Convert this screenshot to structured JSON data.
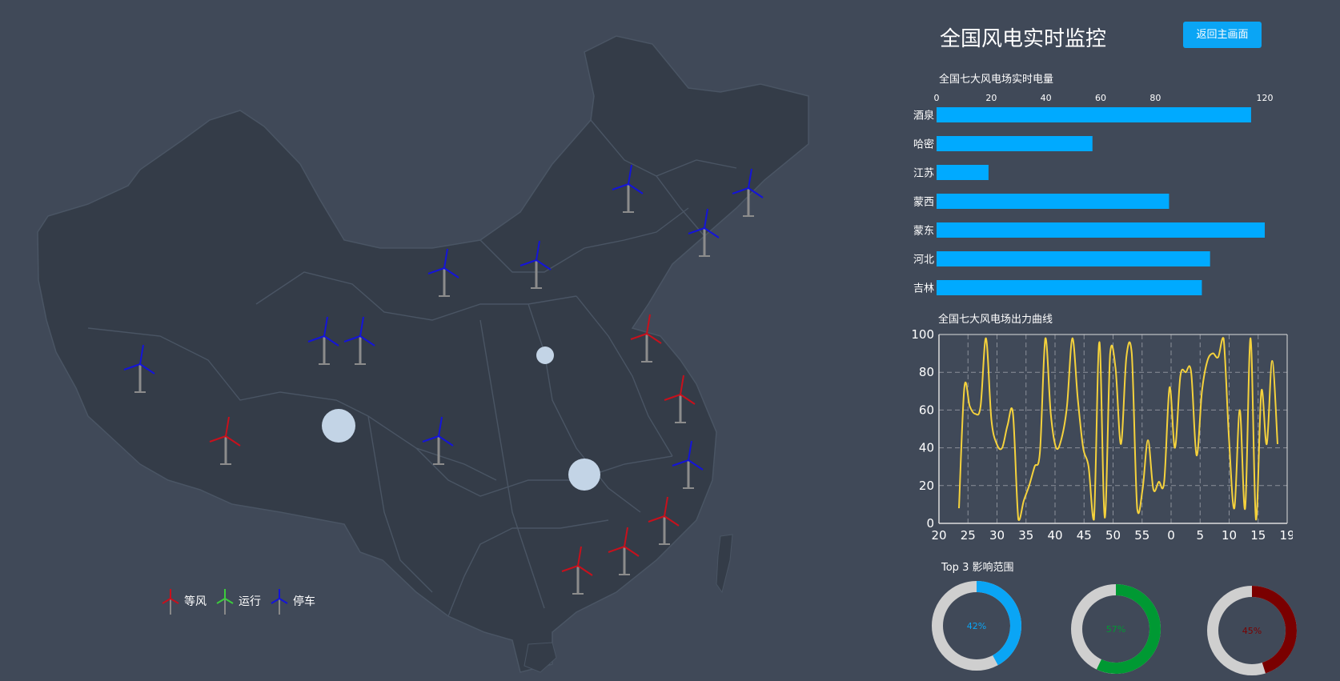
{
  "header": {
    "title": "全国风电实时监控",
    "home_button": "返回主画面"
  },
  "legend": [
    {
      "label": "等风",
      "color": "#c8101c"
    },
    {
      "label": "运行",
      "color": "#3ccc3c"
    },
    {
      "label": "停车",
      "color": "#1414d8"
    }
  ],
  "colors": {
    "bar": "#00aaff",
    "line": "#f5d23c",
    "background": "#404958",
    "land": "#343c48"
  },
  "bar_title": "全国七大风电场实时电量",
  "line_title": "全国七大风电场出力曲线",
  "donut_title": "Top 3 影响范围",
  "chart_data": [
    {
      "type": "bar",
      "orientation": "horizontal",
      "categories": [
        "酒泉",
        "哈密",
        "江苏",
        "蒙西",
        "蒙东",
        "河北",
        "吉林"
      ],
      "values": [
        115,
        57,
        19,
        85,
        120,
        100,
        97
      ],
      "xlim": [
        0,
        120
      ],
      "xticks": [
        "0",
        "20",
        "40",
        "60",
        "80",
        "120"
      ]
    },
    {
      "type": "line",
      "ylim": [
        0,
        100
      ],
      "yticks": [
        "0",
        "20",
        "40",
        "60",
        "80",
        "100"
      ],
      "xticks": [
        "20",
        "25",
        "30",
        "35",
        "40",
        "45",
        "50",
        "55",
        "0",
        "5",
        "10",
        "15",
        "19"
      ],
      "grid": true,
      "y": [
        8,
        72,
        62,
        58,
        62,
        98,
        55,
        42,
        40,
        52,
        58,
        2,
        12,
        20,
        30,
        38,
        98,
        58,
        40,
        45,
        62,
        98,
        66,
        40,
        30,
        2,
        96,
        3,
        90,
        82,
        42,
        88,
        90,
        8,
        18,
        44,
        18,
        22,
        22,
        72,
        40,
        78,
        80,
        80,
        36,
        70,
        86,
        90,
        88,
        98,
        45,
        8,
        60,
        8,
        98,
        2,
        70,
        42,
        86,
        42
      ]
    },
    {
      "type": "pie",
      "variant": "donut",
      "items": [
        {
          "label": "42%",
          "value": 42,
          "color": "#0aa5f5"
        },
        {
          "label": "57%",
          "value": 57,
          "color": "#009933"
        },
        {
          "label": "45%",
          "value": 45,
          "color": "#7a0000"
        }
      ]
    }
  ]
}
